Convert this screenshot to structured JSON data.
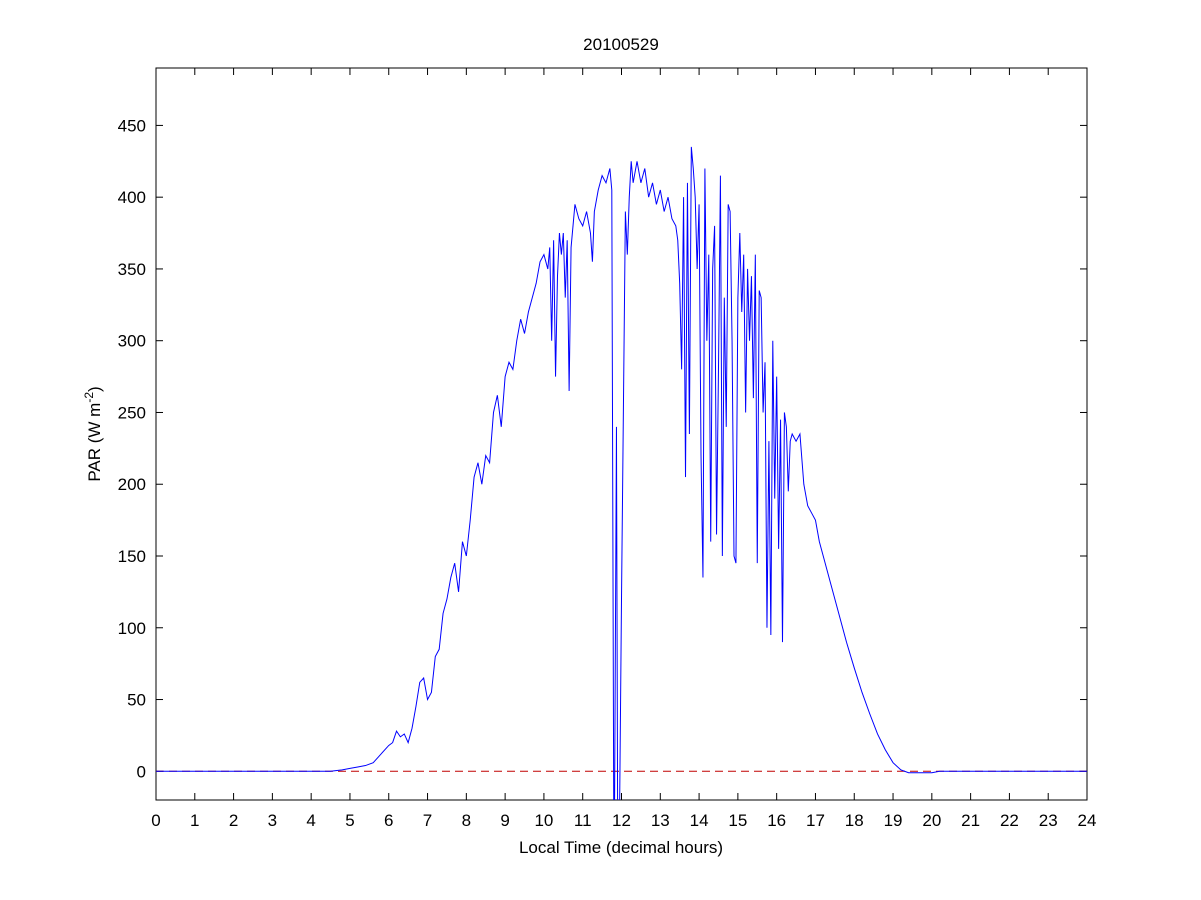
{
  "chart_data": {
    "type": "line",
    "title": "20100529",
    "xlabel": "Local Time (decimal hours)",
    "ylabel": "PAR (W m",
    "ylabel_sup": "-2",
    "ylabel_end": ")",
    "color": "#0000ff",
    "x": [
      0,
      4.5,
      4.8,
      5.0,
      5.2,
      5.4,
      5.6,
      5.8,
      6.0,
      6.1,
      6.2,
      6.3,
      6.4,
      6.5,
      6.6,
      6.7,
      6.8,
      6.9,
      7.0,
      7.1,
      7.2,
      7.3,
      7.4,
      7.5,
      7.6,
      7.7,
      7.8,
      7.9,
      8.0,
      8.1,
      8.2,
      8.3,
      8.4,
      8.5,
      8.6,
      8.7,
      8.8,
      8.9,
      9.0,
      9.1,
      9.2,
      9.3,
      9.4,
      9.5,
      9.6,
      9.7,
      9.8,
      9.9,
      10.0,
      10.1,
      10.15,
      10.2,
      10.25,
      10.3,
      10.35,
      10.4,
      10.45,
      10.5,
      10.55,
      10.6,
      10.65,
      10.7,
      10.8,
      10.9,
      11.0,
      11.1,
      11.2,
      11.25,
      11.3,
      11.4,
      11.5,
      11.6,
      11.7,
      11.75,
      11.8,
      11.82,
      11.87,
      11.9,
      11.95,
      12.0,
      12.1,
      12.15,
      12.2,
      12.25,
      12.3,
      12.4,
      12.5,
      12.6,
      12.7,
      12.8,
      12.9,
      13.0,
      13.1,
      13.2,
      13.3,
      13.4,
      13.45,
      13.5,
      13.55,
      13.6,
      13.65,
      13.7,
      13.75,
      13.8,
      13.85,
      13.9,
      13.95,
      14.0,
      14.05,
      14.1,
      14.15,
      14.2,
      14.25,
      14.3,
      14.35,
      14.4,
      14.45,
      14.5,
      14.55,
      14.6,
      14.65,
      14.7,
      14.75,
      14.8,
      14.85,
      14.9,
      14.95,
      15.0,
      15.05,
      15.1,
      15.15,
      15.2,
      15.25,
      15.3,
      15.35,
      15.4,
      15.45,
      15.5,
      15.55,
      15.6,
      15.65,
      15.7,
      15.75,
      15.8,
      15.85,
      15.9,
      15.95,
      16.0,
      16.05,
      16.1,
      16.15,
      16.2,
      16.25,
      16.3,
      16.35,
      16.4,
      16.5,
      16.6,
      16.7,
      16.8,
      16.9,
      17.0,
      17.1,
      17.2,
      17.3,
      17.4,
      17.6,
      17.8,
      18.0,
      18.2,
      18.4,
      18.6,
      18.8,
      19.0,
      19.2,
      19.4,
      19.6,
      19.8,
      20.0,
      20.2,
      20.5,
      24
    ],
    "values": [
      0,
      0,
      1,
      2,
      3,
      4,
      6,
      12,
      18,
      20,
      28,
      24,
      26,
      20,
      30,
      45,
      62,
      65,
      50,
      55,
      80,
      85,
      110,
      120,
      135,
      145,
      125,
      160,
      150,
      175,
      205,
      215,
      200,
      220,
      215,
      250,
      262,
      240,
      275,
      285,
      280,
      300,
      315,
      305,
      320,
      330,
      340,
      355,
      360,
      350,
      365,
      300,
      370,
      275,
      345,
      375,
      360,
      375,
      330,
      370,
      265,
      365,
      395,
      385,
      380,
      390,
      375,
      355,
      390,
      405,
      415,
      410,
      420,
      405,
      -30,
      -30,
      240,
      -30,
      -30,
      120,
      390,
      360,
      400,
      425,
      410,
      425,
      410,
      420,
      400,
      410,
      395,
      405,
      390,
      400,
      385,
      380,
      370,
      340,
      280,
      400,
      205,
      410,
      235,
      435,
      420,
      400,
      350,
      395,
      220,
      135,
      420,
      300,
      360,
      160,
      350,
      380,
      165,
      280,
      415,
      150,
      330,
      240,
      395,
      390,
      300,
      150,
      145,
      330,
      375,
      320,
      360,
      250,
      350,
      300,
      345,
      260,
      360,
      145,
      335,
      330,
      250,
      285,
      100,
      230,
      95,
      300,
      190,
      275,
      155,
      245,
      90,
      250,
      240,
      195,
      230,
      235,
      230,
      235,
      200,
      185,
      180,
      175,
      160,
      150,
      140,
      130,
      110,
      90,
      72,
      55,
      40,
      26,
      15,
      6,
      1,
      -1,
      -1,
      -1,
      -1,
      0,
      0,
      0
    ],
    "reference_line": {
      "y": 0,
      "color": "#c00000",
      "dashed": true
    },
    "xlim": [
      0,
      24
    ],
    "xticks": [
      0,
      1,
      2,
      3,
      4,
      5,
      6,
      7,
      8,
      9,
      10,
      11,
      12,
      13,
      14,
      15,
      16,
      17,
      18,
      19,
      20,
      21,
      22,
      23,
      24
    ],
    "ylim": [
      -20,
      490
    ],
    "yticks": [
      0,
      50,
      100,
      150,
      200,
      250,
      300,
      350,
      400,
      450
    ]
  }
}
